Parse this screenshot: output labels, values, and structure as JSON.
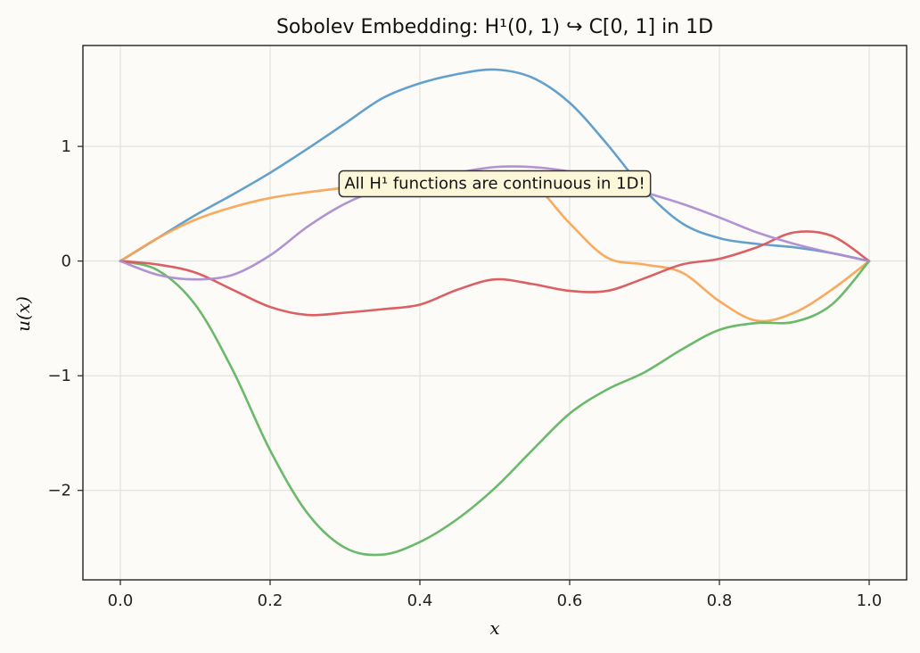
{
  "chart_data": {
    "type": "line",
    "title": "Sobolev Embedding: H¹(0, 1) ↪ C[0, 1] in 1D",
    "xlabel": "x",
    "ylabel": "u(x)",
    "xlim": [
      -0.05,
      1.05
    ],
    "ylim": [
      -2.78,
      1.88
    ],
    "xticks": [
      0.0,
      0.2,
      0.4,
      0.6,
      0.8,
      1.0
    ],
    "xtick_labels": [
      "0.0",
      "0.2",
      "0.4",
      "0.6",
      "0.8",
      "1.0"
    ],
    "yticks": [
      -2,
      -1,
      0,
      1
    ],
    "ytick_labels": [
      "−2",
      "−1",
      "0",
      "1"
    ],
    "grid": true,
    "legend": "none",
    "annotation": {
      "text": "All H¹ functions are continuous in 1D!",
      "x": 0.5,
      "y": 0.67
    },
    "series": [
      {
        "color": "#5b9bc8",
        "x": [
          0.0,
          0.05,
          0.1,
          0.15,
          0.2,
          0.25,
          0.3,
          0.35,
          0.4,
          0.45,
          0.5,
          0.55,
          0.6,
          0.65,
          0.7,
          0.75,
          0.8,
          0.85,
          0.9,
          0.95,
          1.0
        ],
        "y": [
          0.0,
          0.2,
          0.4,
          0.58,
          0.77,
          0.98,
          1.2,
          1.42,
          1.55,
          1.63,
          1.67,
          1.6,
          1.38,
          1.02,
          0.62,
          0.33,
          0.2,
          0.15,
          0.12,
          0.07,
          0.0
        ]
      },
      {
        "color": "#f8a556",
        "x": [
          0.0,
          0.05,
          0.1,
          0.15,
          0.2,
          0.25,
          0.3,
          0.35,
          0.4,
          0.45,
          0.5,
          0.55,
          0.6,
          0.65,
          0.7,
          0.75,
          0.8,
          0.85,
          0.9,
          0.95,
          1.0
        ],
        "y": [
          0.0,
          0.2,
          0.36,
          0.47,
          0.55,
          0.6,
          0.64,
          0.68,
          0.73,
          0.77,
          0.77,
          0.68,
          0.33,
          0.03,
          -0.03,
          -0.1,
          -0.35,
          -0.52,
          -0.45,
          -0.25,
          0.0
        ]
      },
      {
        "color": "#63b562",
        "x": [
          0.0,
          0.05,
          0.1,
          0.15,
          0.2,
          0.25,
          0.3,
          0.35,
          0.4,
          0.45,
          0.5,
          0.55,
          0.6,
          0.65,
          0.7,
          0.75,
          0.8,
          0.85,
          0.9,
          0.95,
          1.0
        ],
        "y": [
          0.0,
          -0.08,
          -0.38,
          -0.95,
          -1.65,
          -2.2,
          -2.5,
          -2.56,
          -2.45,
          -2.25,
          -1.98,
          -1.65,
          -1.33,
          -1.12,
          -0.97,
          -0.77,
          -0.6,
          -0.54,
          -0.53,
          -0.38,
          0.0
        ]
      },
      {
        "color": "#d9575b",
        "x": [
          0.0,
          0.05,
          0.1,
          0.15,
          0.2,
          0.25,
          0.3,
          0.35,
          0.4,
          0.45,
          0.5,
          0.55,
          0.6,
          0.65,
          0.7,
          0.75,
          0.8,
          0.85,
          0.9,
          0.95,
          1.0
        ],
        "y": [
          0.0,
          -0.03,
          -0.1,
          -0.25,
          -0.4,
          -0.47,
          -0.45,
          -0.42,
          -0.38,
          -0.25,
          -0.16,
          -0.2,
          -0.26,
          -0.26,
          -0.15,
          -0.03,
          0.02,
          0.12,
          0.25,
          0.22,
          0.0
        ]
      },
      {
        "color": "#ae8dd0",
        "x": [
          0.0,
          0.05,
          0.1,
          0.15,
          0.2,
          0.25,
          0.3,
          0.35,
          0.4,
          0.45,
          0.5,
          0.55,
          0.6,
          0.65,
          0.7,
          0.75,
          0.8,
          0.85,
          0.9,
          0.95,
          1.0
        ],
        "y": [
          0.0,
          -0.12,
          -0.16,
          -0.12,
          0.05,
          0.3,
          0.5,
          0.63,
          0.7,
          0.77,
          0.82,
          0.82,
          0.78,
          0.7,
          0.6,
          0.5,
          0.38,
          0.25,
          0.15,
          0.07,
          0.0
        ]
      }
    ]
  }
}
